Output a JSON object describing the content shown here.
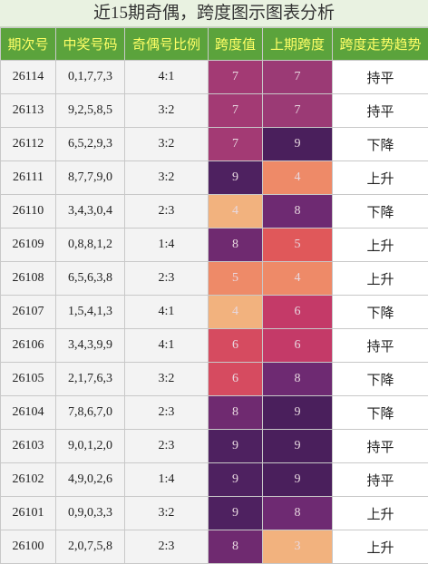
{
  "header": {
    "title": "近15期奇偶，跨度图示图表分析"
  },
  "table": {
    "columns": [
      "期次号",
      "中奖号码",
      "奇偶号比例",
      "跨度值",
      "上期跨度",
      "跨度走势趋势"
    ],
    "rows": [
      {
        "period": "26114",
        "draw": "0,1,7,7,3",
        "ratio": "4:1",
        "span": "7",
        "prev_span": "7",
        "trend": "持平",
        "span_color": "#a33a74",
        "prev_color": "#9b3a75"
      },
      {
        "period": "26113",
        "draw": "9,2,5,8,5",
        "ratio": "3:2",
        "span": "7",
        "prev_span": "7",
        "trend": "持平",
        "span_color": "#a33a74",
        "prev_color": "#9b3a75"
      },
      {
        "period": "26112",
        "draw": "6,5,2,9,3",
        "ratio": "3:2",
        "span": "7",
        "prev_span": "9",
        "trend": "下降",
        "span_color": "#a33a74",
        "prev_color": "#4a1f5c"
      },
      {
        "period": "26111",
        "draw": "8,7,7,9,0",
        "ratio": "3:2",
        "span": "9",
        "prev_span": "4",
        "trend": "上升",
        "span_color": "#4e2160",
        "prev_color": "#ee8a68"
      },
      {
        "period": "26110",
        "draw": "3,4,3,0,4",
        "ratio": "2:3",
        "span": "4",
        "prev_span": "8",
        "trend": "下降",
        "span_color": "#f2b27e",
        "prev_color": "#6e2a72"
      },
      {
        "period": "26109",
        "draw": "0,8,8,1,2",
        "ratio": "1:4",
        "span": "8",
        "prev_span": "5",
        "trend": "上升",
        "span_color": "#6f2a70",
        "prev_color": "#e0585a"
      },
      {
        "period": "26108",
        "draw": "6,5,6,3,8",
        "ratio": "2:3",
        "span": "5",
        "prev_span": "4",
        "trend": "上升",
        "span_color": "#ee8a68",
        "prev_color": "#ee8a68"
      },
      {
        "period": "26107",
        "draw": "1,5,4,1,3",
        "ratio": "4:1",
        "span": "4",
        "prev_span": "6",
        "trend": "下降",
        "span_color": "#f2b27e",
        "prev_color": "#c43a68"
      },
      {
        "period": "26106",
        "draw": "3,4,3,9,9",
        "ratio": "4:1",
        "span": "6",
        "prev_span": "6",
        "trend": "持平",
        "span_color": "#d64b60",
        "prev_color": "#c43a68"
      },
      {
        "period": "26105",
        "draw": "2,1,7,6,3",
        "ratio": "3:2",
        "span": "6",
        "prev_span": "8",
        "trend": "下降",
        "span_color": "#d64b60",
        "prev_color": "#6e2a72"
      },
      {
        "period": "26104",
        "draw": "7,8,6,7,0",
        "ratio": "2:3",
        "span": "8",
        "prev_span": "9",
        "trend": "下降",
        "span_color": "#6f2a70",
        "prev_color": "#4a1f5c"
      },
      {
        "period": "26103",
        "draw": "9,0,1,2,0",
        "ratio": "2:3",
        "span": "9",
        "prev_span": "9",
        "trend": "持平",
        "span_color": "#4e2160",
        "prev_color": "#4a1f5c"
      },
      {
        "period": "26102",
        "draw": "4,9,0,2,6",
        "ratio": "1:4",
        "span": "9",
        "prev_span": "9",
        "trend": "持平",
        "span_color": "#4e2160",
        "prev_color": "#4a1f5c"
      },
      {
        "period": "26101",
        "draw": "0,9,0,3,3",
        "ratio": "3:2",
        "span": "9",
        "prev_span": "8",
        "trend": "上升",
        "span_color": "#4e2160",
        "prev_color": "#6e2a72"
      },
      {
        "period": "26100",
        "draw": "2,0,7,5,8",
        "ratio": "2:3",
        "span": "8",
        "prev_span": "3",
        "trend": "上升",
        "span_color": "#6f2a70",
        "prev_color": "#f2b27e"
      }
    ]
  }
}
